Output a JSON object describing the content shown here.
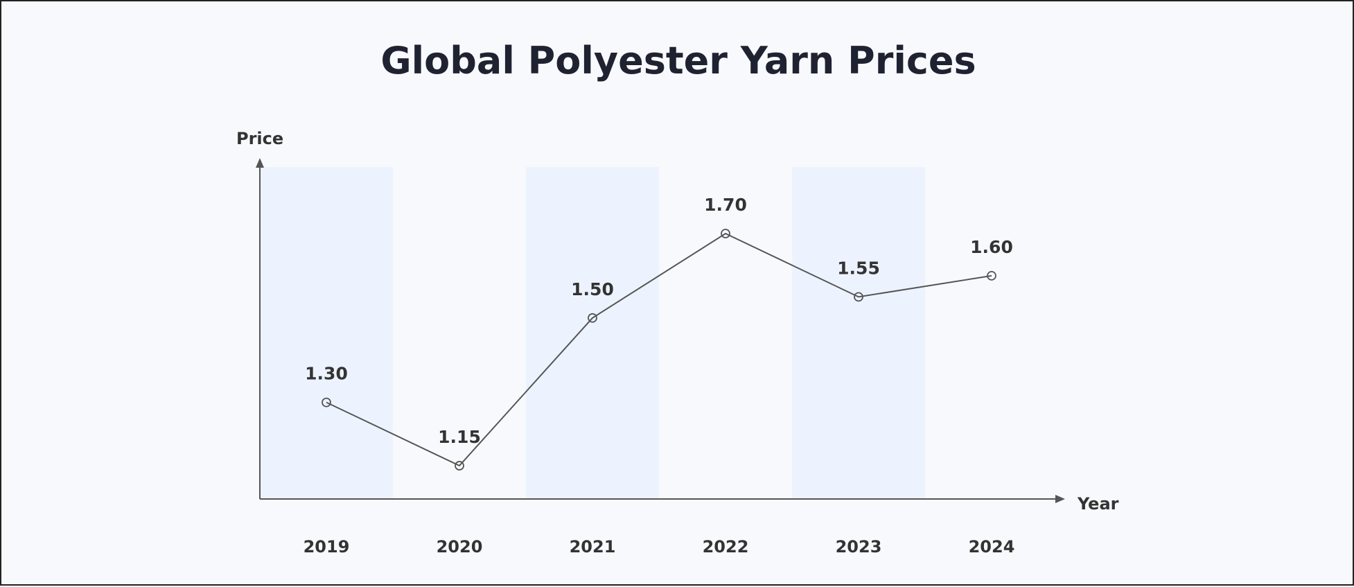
{
  "chart_data": {
    "type": "line",
    "title": "Global Polyester Yarn Prices",
    "xlabel": "Year",
    "ylabel": "Price",
    "categories": [
      "2019",
      "2020",
      "2021",
      "2022",
      "2023",
      "2024"
    ],
    "series": [
      {
        "values": [
          1.3,
          1.15,
          1.5,
          1.7,
          1.55,
          1.6
        ]
      }
    ],
    "data_labels": [
      "1.30",
      "1.15",
      "1.50",
      "1.70",
      "1.55",
      "1.60"
    ],
    "grid": false,
    "alternating_bands": true,
    "colors": {
      "line": "#555555",
      "band": "#edf3fe",
      "text": "#333333",
      "title": "#1f2230",
      "background": "#f8f9fc"
    }
  }
}
